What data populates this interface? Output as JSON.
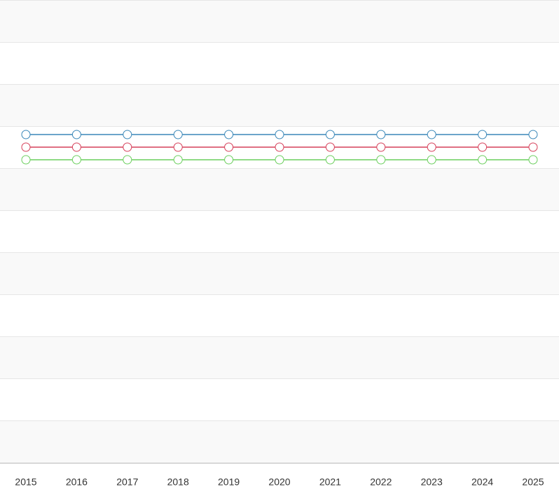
{
  "chart_data": {
    "type": "line",
    "categories": [
      "2015",
      "2016",
      "2017",
      "2018",
      "2019",
      "2020",
      "2021",
      "2022",
      "2023",
      "2024",
      "2025"
    ],
    "series": [
      {
        "color": "#3a87b8",
        "values": [
          7.8,
          7.8,
          7.8,
          7.8,
          7.8,
          7.8,
          7.8,
          7.8,
          7.8,
          7.8,
          7.8
        ]
      },
      {
        "color": "#d6405a",
        "values": [
          7.5,
          7.5,
          7.5,
          7.5,
          7.5,
          7.5,
          7.5,
          7.5,
          7.5,
          7.5,
          7.5
        ]
      },
      {
        "color": "#6ccf5f",
        "values": [
          7.2,
          7.2,
          7.2,
          7.2,
          7.2,
          7.2,
          7.2,
          7.2,
          7.2,
          7.2,
          7.2
        ]
      }
    ],
    "ylim": [
      0,
      11
    ],
    "grid": true
  }
}
